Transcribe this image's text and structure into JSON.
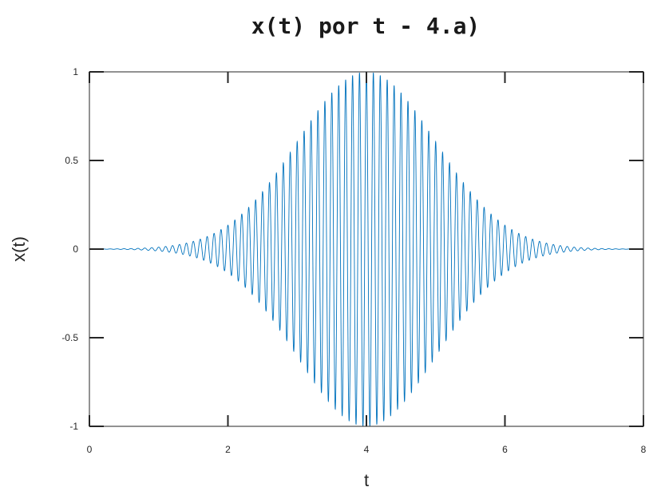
{
  "chart_data": {
    "type": "line",
    "title": "x(t) por t - 4.a)",
    "xlabel": "t",
    "ylabel": "x(t)",
    "xlim": [
      0,
      8
    ],
    "ylim": [
      -1,
      1
    ],
    "x_ticks": [
      0,
      2,
      4,
      6,
      8
    ],
    "x_tick_labels": [
      "0",
      "2",
      "4",
      "6",
      "8"
    ],
    "y_ticks": [
      1,
      0.5,
      0,
      -0.5,
      -1
    ],
    "y_tick_labels": [
      "1",
      "0.5",
      "0",
      "-0.5",
      "-1"
    ],
    "grid": false,
    "legend": "none",
    "series": [
      {
        "color": "#0072bd",
        "description": "Gaussian-modulated cosine",
        "x_range": [
          0,
          8
        ],
        "carrier_frequency_hz": 10,
        "envelope_center": 4,
        "envelope_peak": 1,
        "envelope_sigma": 1,
        "envelope_samples": {
          "x": [
            0,
            1,
            1.5,
            2,
            2.5,
            3,
            3.5,
            4,
            4.5,
            5,
            5.5,
            6,
            6.5,
            7,
            8
          ],
          "y": [
            0.0003,
            0.011,
            0.044,
            0.135,
            0.325,
            0.607,
            0.882,
            1.0,
            0.882,
            0.607,
            0.325,
            0.135,
            0.044,
            0.011,
            0.0003
          ]
        }
      }
    ]
  }
}
